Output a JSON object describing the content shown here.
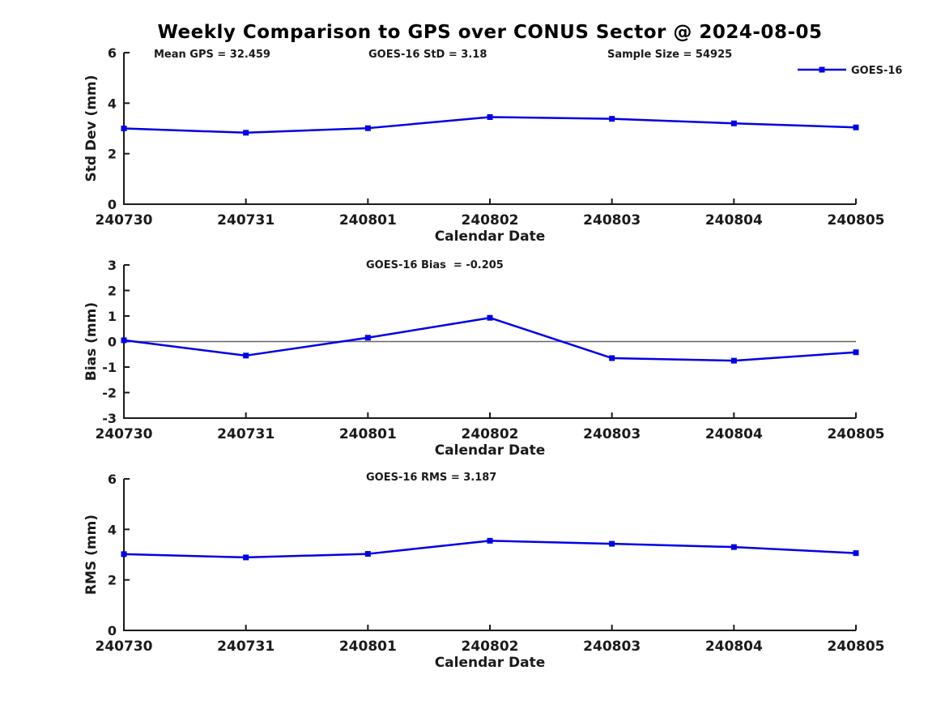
{
  "title": "Weekly Comparison to GPS over CONUS Sector @ 2024-08-05",
  "figure": {
    "background_color": "#ffffff",
    "axis_color": "#1a1a1a",
    "accent_color": "#0000E6",
    "zero_line_color": "#666666"
  },
  "chart_data": [
    {
      "id": "std-dev",
      "type": "line",
      "xlabel": "Calendar Date",
      "ylabel": "Std Dev (mm)",
      "categories": [
        "240730",
        "240731",
        "240801",
        "240802",
        "240803",
        "240804",
        "240805"
      ],
      "series": [
        {
          "name": "GOES-16",
          "color": "#0000E6",
          "marker": "square",
          "values": [
            3.0,
            2.83,
            3.01,
            3.45,
            3.38,
            3.2,
            3.04
          ]
        }
      ],
      "ylim": [
        0,
        6
      ],
      "yticks": [
        0,
        2,
        4,
        6
      ],
      "grid": false,
      "zero_line": false,
      "annotations": [
        "Mean GPS = 32.459",
        "GOES-16 StD = 3.18",
        "Sample Size = 54925"
      ],
      "legend": {
        "show": true,
        "position": "top-right",
        "entries": [
          "GOES-16"
        ]
      }
    },
    {
      "id": "bias",
      "type": "line",
      "xlabel": "Calendar Date",
      "ylabel": "Bias (mm)",
      "categories": [
        "240730",
        "240731",
        "240801",
        "240802",
        "240803",
        "240804",
        "240805"
      ],
      "series": [
        {
          "name": "GOES-16",
          "color": "#0000E6",
          "marker": "square",
          "values": [
            0.05,
            -0.55,
            0.15,
            0.93,
            -0.65,
            -0.75,
            -0.42
          ]
        }
      ],
      "ylim": [
        -3,
        3
      ],
      "yticks": [
        -3,
        -2,
        -1,
        0,
        1,
        2,
        3
      ],
      "grid": false,
      "zero_line": true,
      "annotations": [
        "GOES-16 Bias  = -0.205"
      ],
      "legend": {
        "show": false,
        "position": "top-right",
        "entries": []
      }
    },
    {
      "id": "rms",
      "type": "line",
      "xlabel": "Calendar Date",
      "ylabel": "RMS (mm)",
      "categories": [
        "240730",
        "240731",
        "240801",
        "240802",
        "240803",
        "240804",
        "240805"
      ],
      "series": [
        {
          "name": "GOES-16",
          "color": "#0000E6",
          "marker": "square",
          "values": [
            3.02,
            2.89,
            3.03,
            3.55,
            3.43,
            3.3,
            3.06
          ]
        }
      ],
      "ylim": [
        0,
        6
      ],
      "yticks": [
        0,
        2,
        4,
        6
      ],
      "grid": false,
      "zero_line": false,
      "annotations": [
        "GOES-16 RMS = 3.187"
      ],
      "legend": {
        "show": false,
        "position": "top-right",
        "entries": []
      }
    }
  ]
}
